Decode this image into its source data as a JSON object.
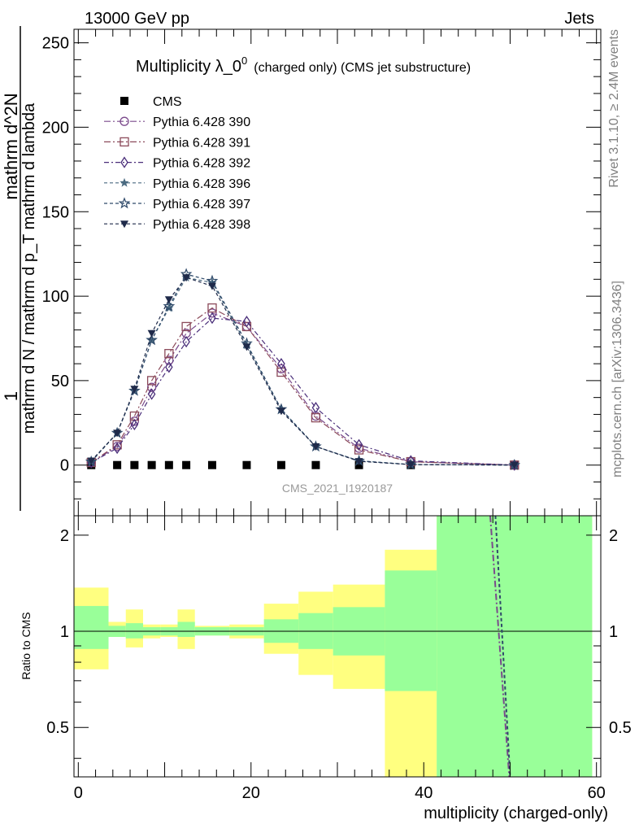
{
  "header": {
    "left": "13000 GeV pp",
    "right": "Jets"
  },
  "side_text": {
    "rivet": "Rivet 3.1.10, ≥ 2.4M events",
    "mcplots": "mcplots.cern.ch [arXiv:1306.3436]"
  },
  "watermark": "CMS_2021_I1920187",
  "chart_data": [
    {
      "type": "line",
      "title": "Multiplicity λ_0^0 (charged only) (CMS jet substructure)",
      "title_parts": {
        "main": "Multiplicity λ_0",
        "sup": "0",
        "small": "(charged only) (CMS jet substructure)"
      },
      "ylabel_top": "1",
      "ylabel_main": "mathrm d N / mathrm d p_T mathrm d lambda",
      "ylabel_num": "mathrm d^2N",
      "ylim": [
        -30,
        258
      ],
      "xlim": [
        -0.5,
        60.5
      ],
      "yticks": [
        0,
        50,
        100,
        150,
        200,
        250
      ],
      "legend_position": "top-left",
      "x": [
        1.5,
        4.5,
        6.5,
        8.5,
        10.5,
        12.5,
        15.5,
        19.5,
        23.5,
        27.5,
        32.5,
        38.5,
        50.5
      ],
      "series": [
        {
          "name": "CMS",
          "marker": "square",
          "color": "#000000",
          "dash": "",
          "values": [
            0,
            0,
            0,
            0,
            0,
            0,
            0,
            0,
            0,
            0,
            0,
            0,
            0
          ]
        },
        {
          "name": "Pythia 6.428 390",
          "marker": "circle",
          "color": "#7b4a8c",
          "dash": "8,3,2,3",
          "values": [
            1.5,
            11,
            26,
            46,
            62,
            78,
            90,
            82,
            57,
            29,
            10,
            2,
            0
          ]
        },
        {
          "name": "Pythia 6.428 391",
          "marker": "square-open",
          "color": "#8b4a5a",
          "dash": "8,3,2,3",
          "values": [
            1.5,
            12,
            29,
            50,
            66,
            82,
            93,
            82,
            55,
            28,
            9,
            2,
            0
          ]
        },
        {
          "name": "Pythia 6.428 392",
          "marker": "diamond",
          "color": "#4a2f7a",
          "dash": "6,3,2,3",
          "values": [
            1.5,
            10,
            24,
            42,
            58,
            73,
            87,
            85,
            60,
            34,
            12,
            2.5,
            0
          ]
        },
        {
          "name": "Pythia 6.428 396",
          "marker": "star",
          "color": "#4a6a80",
          "dash": "4,3",
          "values": [
            2,
            19,
            44,
            74,
            93,
            111,
            108,
            71,
            33,
            11,
            2.5,
            0.3,
            0
          ]
        },
        {
          "name": "Pythia 6.428 397",
          "marker": "star-open",
          "color": "#2f4a6a",
          "dash": "4,3",
          "values": [
            2,
            19,
            44,
            74,
            94,
            113,
            109,
            72,
            33,
            11,
            2.5,
            0.3,
            0
          ]
        },
        {
          "name": "Pythia 6.428 398",
          "marker": "triangle-down",
          "color": "#1f2a4a",
          "dash": "4,3",
          "values": [
            2.5,
            19,
            45,
            78,
            98,
            111,
            106,
            70,
            32,
            11,
            2.2,
            0.3,
            0
          ]
        }
      ]
    },
    {
      "type": "area",
      "ylabel": "Ratio to CMS",
      "xlabel": "multiplicity (charged-only)",
      "ylim": [
        0.35,
        2.3
      ],
      "xlim": [
        -0.5,
        60.5
      ],
      "xticks": [
        0,
        20,
        40,
        60
      ],
      "yticks": [
        0.5,
        1,
        2
      ],
      "bins": [
        {
          "lo": -0.5,
          "hi": 3.5,
          "inner": [
            0.88,
            1.2
          ],
          "outer": [
            0.76,
            1.37
          ]
        },
        {
          "lo": 3.5,
          "hi": 5.5,
          "inner": [
            0.96,
            1.04
          ],
          "outer": [
            0.96,
            1.07
          ]
        },
        {
          "lo": 5.5,
          "hi": 7.5,
          "inner": [
            0.95,
            1.06
          ],
          "outer": [
            0.89,
            1.17
          ]
        },
        {
          "lo": 7.5,
          "hi": 9.5,
          "inner": [
            0.97,
            1.03
          ],
          "outer": [
            0.95,
            1.05
          ]
        },
        {
          "lo": 9.5,
          "hi": 11.5,
          "inner": [
            0.97,
            1.03
          ],
          "outer": [
            0.96,
            1.05
          ]
        },
        {
          "lo": 11.5,
          "hi": 13.5,
          "inner": [
            0.96,
            1.07
          ],
          "outer": [
            0.88,
            1.17
          ]
        },
        {
          "lo": 13.5,
          "hi": 17.5,
          "inner": [
            0.97,
            1.03
          ],
          "outer": [
            0.97,
            1.04
          ]
        },
        {
          "lo": 17.5,
          "hi": 21.5,
          "inner": [
            0.97,
            1.03
          ],
          "outer": [
            0.95,
            1.05
          ]
        },
        {
          "lo": 21.5,
          "hi": 25.5,
          "inner": [
            0.92,
            1.09
          ],
          "outer": [
            0.85,
            1.22
          ]
        },
        {
          "lo": 25.5,
          "hi": 29.5,
          "inner": [
            0.88,
            1.14
          ],
          "outer": [
            0.73,
            1.33
          ]
        },
        {
          "lo": 29.5,
          "hi": 35.5,
          "inner": [
            0.84,
            1.19
          ],
          "outer": [
            0.66,
            1.4
          ]
        },
        {
          "lo": 35.5,
          "hi": 41.5,
          "inner": [
            0.65,
            1.55
          ],
          "outer": [
            0.3,
            1.8
          ]
        },
        {
          "lo": 41.5,
          "hi": 59.5,
          "inner": [
            0.3,
            2.4
          ],
          "outer": [
            0.3,
            2.4
          ]
        }
      ],
      "ratio_lines": [
        {
          "name": "Pythia 6.428 390",
          "color": "#7b4a8c",
          "dash": "8,3,2,3",
          "points": [
            [
              47.7,
              2.3
            ],
            [
              49.9,
              0.35
            ]
          ]
        },
        {
          "name": "Pythia 6.428 396",
          "color": "#2f4a6a",
          "dash": "4,3",
          "points": [
            [
              48.3,
              2.3
            ],
            [
              50.0,
              0.35
            ]
          ]
        }
      ],
      "band_colors": {
        "outer": "#ffff80",
        "inner": "#99ff99"
      }
    }
  ]
}
